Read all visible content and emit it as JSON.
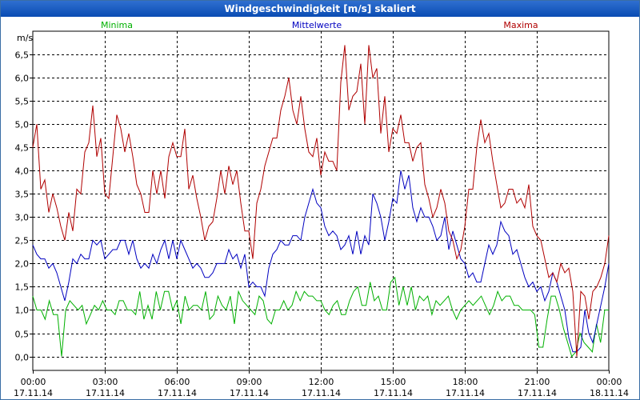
{
  "window": {
    "title": "Windgeschwindigkeit [m/s] skaliert"
  },
  "chart_data": {
    "type": "line",
    "title": "Windgeschwindigkeit [m/s] skaliert",
    "ylabel": "m/s",
    "ylim": [
      -0.3,
      7.0
    ],
    "yticks": [
      "0,0",
      "0,5",
      "1,0",
      "1,5",
      "2,0",
      "2,5",
      "3,0",
      "3,5",
      "4,0",
      "4,5",
      "5,0",
      "5,5",
      "6,0",
      "6,5"
    ],
    "ytick_values": [
      0,
      0.5,
      1,
      1.5,
      2,
      2.5,
      3,
      3.5,
      4,
      4.5,
      5,
      5.5,
      6,
      6.5
    ],
    "xlim_hours": [
      0,
      24
    ],
    "xticks": [
      {
        "time": "00:00",
        "date": "17.11.14",
        "hour": 0
      },
      {
        "time": "03:00",
        "date": "17.11.14",
        "hour": 3
      },
      {
        "time": "06:00",
        "date": "17.11.14",
        "hour": 6
      },
      {
        "time": "09:00",
        "date": "17.11.14",
        "hour": 9
      },
      {
        "time": "12:00",
        "date": "17.11.14",
        "hour": 12
      },
      {
        "time": "15:00",
        "date": "17.11.14",
        "hour": 15
      },
      {
        "time": "18:00",
        "date": "17.11.14",
        "hour": 18
      },
      {
        "time": "21:00",
        "date": "17.11.14",
        "hour": 21
      },
      {
        "time": "00:00",
        "date": "18.11.14",
        "hour": 24
      }
    ],
    "grid": true,
    "series": [
      {
        "name": "Minima",
        "color": "#00b000",
        "legend_position": "left",
        "values": [
          1.3,
          1.0,
          1.0,
          0.8,
          1.2,
          0.9,
          0.9,
          0.0,
          1.0,
          1.2,
          1.1,
          1.0,
          1.1,
          0.7,
          0.9,
          1.1,
          1.0,
          1.2,
          1.0,
          1.0,
          0.9,
          1.2,
          1.2,
          1.0,
          1.0,
          0.9,
          1.4,
          0.8,
          1.1,
          0.8,
          1.4,
          1.0,
          1.4,
          1.4,
          1.0,
          1.2,
          0.7,
          1.3,
          1.0,
          1.1,
          1.1,
          1.0,
          1.4,
          0.8,
          0.9,
          1.3,
          1.1,
          1.0,
          1.3,
          0.7,
          1.4,
          1.2,
          1.1,
          1.0,
          0.9,
          1.3,
          1.2,
          0.8,
          0.7,
          1.0,
          1.0,
          1.2,
          1.0,
          1.1,
          1.4,
          1.2,
          1.4,
          1.3,
          1.3,
          1.2,
          1.2,
          1.0,
          0.9,
          1.1,
          1.2,
          0.9,
          0.9,
          1.2,
          1.4,
          1.5,
          1.1,
          1.1,
          1.6,
          1.2,
          1.3,
          1.0,
          1.0,
          1.6,
          1.7,
          1.1,
          1.5,
          1.1,
          1.5,
          1.0,
          1.3,
          1.2,
          1.3,
          0.9,
          1.2,
          1.1,
          1.2,
          1.3,
          1.0,
          0.8,
          1.0,
          1.1,
          1.2,
          1.1,
          1.2,
          1.3,
          1.1,
          0.9,
          1.1,
          1.4,
          1.2,
          1.3,
          1.3,
          1.1,
          1.1,
          1.0,
          1.0,
          1.0,
          0.9,
          0.2,
          0.2,
          0.8,
          1.3,
          1.3,
          1.0,
          0.6,
          0.3,
          0.0,
          0.1,
          0.5,
          0.3,
          0.2,
          0.1,
          0.7,
          0.3,
          1.0,
          1.0
        ]
      },
      {
        "name": "Mittelwerte",
        "color": "#0000c0",
        "legend_position": "center",
        "values": [
          2.4,
          2.2,
          2.1,
          2.1,
          1.9,
          2.0,
          1.8,
          1.5,
          1.2,
          1.6,
          2.1,
          2.0,
          2.2,
          2.1,
          2.1,
          2.5,
          2.4,
          2.5,
          2.1,
          2.2,
          2.3,
          2.3,
          2.5,
          2.5,
          2.2,
          2.5,
          2.1,
          1.9,
          2.0,
          1.9,
          2.2,
          2.0,
          2.3,
          2.5,
          2.1,
          2.5,
          2.1,
          2.5,
          2.3,
          2.1,
          1.9,
          2.0,
          1.9,
          1.7,
          1.7,
          1.8,
          2.0,
          2.0,
          2.0,
          2.3,
          2.1,
          2.2,
          1.9,
          2.2,
          1.5,
          1.6,
          1.5,
          1.5,
          1.3,
          1.9,
          2.2,
          2.3,
          2.5,
          2.4,
          2.4,
          2.6,
          2.6,
          2.5,
          3.0,
          3.3,
          3.6,
          3.3,
          3.2,
          2.8,
          2.6,
          2.7,
          2.6,
          2.3,
          2.4,
          2.6,
          2.2,
          2.7,
          2.2,
          2.6,
          2.4,
          3.5,
          3.3,
          3.0,
          2.5,
          2.9,
          3.4,
          3.3,
          4.0,
          3.6,
          3.9,
          3.2,
          2.9,
          3.2,
          3.0,
          3.0,
          2.8,
          2.5,
          2.6,
          3.0,
          2.3,
          2.7,
          2.4,
          2.1,
          2.0,
          1.7,
          1.8,
          1.6,
          1.6,
          2.0,
          2.4,
          2.2,
          2.4,
          2.9,
          2.7,
          2.6,
          2.2,
          2.3,
          2.0,
          1.7,
          1.5,
          1.6,
          1.4,
          1.5,
          1.2,
          1.4,
          1.8,
          1.6,
          1.3,
          1.0,
          0.4,
          0.1,
          0.1,
          0.2,
          1.0,
          0.5,
          0.3,
          0.7,
          1.1,
          1.5,
          2.0
        ]
      },
      {
        "name": "Maxima",
        "color": "#b00000",
        "legend_position": "right",
        "values": [
          4.5,
          5.0,
          3.6,
          3.8,
          3.1,
          3.5,
          3.2,
          2.8,
          2.5,
          3.1,
          2.7,
          3.6,
          3.5,
          4.4,
          4.6,
          5.4,
          4.3,
          4.7,
          3.5,
          3.4,
          4.3,
          5.2,
          4.9,
          4.4,
          4.8,
          4.3,
          3.7,
          3.5,
          3.1,
          3.1,
          4.0,
          3.5,
          4.0,
          3.4,
          4.3,
          4.6,
          4.3,
          4.3,
          4.9,
          3.6,
          3.9,
          3.4,
          3.0,
          2.5,
          2.8,
          2.9,
          3.4,
          4.0,
          3.5,
          4.1,
          3.7,
          4.0,
          3.3,
          2.7,
          2.7,
          2.1,
          3.3,
          3.6,
          4.1,
          4.4,
          4.7,
          4.7,
          5.3,
          5.6,
          6.0,
          5.3,
          5.0,
          5.6,
          4.9,
          4.4,
          4.3,
          4.7,
          3.9,
          4.4,
          4.2,
          4.2,
          4.0,
          5.9,
          6.7,
          5.3,
          5.6,
          5.7,
          6.3,
          5.0,
          6.7,
          6.0,
          6.2,
          4.8,
          5.6,
          4.4,
          4.9,
          4.8,
          5.2,
          4.6,
          4.6,
          4.2,
          4.5,
          4.6,
          3.7,
          3.4,
          3.0,
          3.2,
          3.6,
          3.3,
          2.7,
          2.5,
          2.1,
          2.3,
          2.8,
          3.6,
          3.6,
          4.5,
          5.1,
          4.6,
          4.8,
          4.2,
          3.7,
          3.2,
          3.3,
          3.6,
          3.6,
          3.3,
          3.4,
          3.2,
          3.7,
          2.8,
          2.6,
          2.5,
          2.1,
          1.7,
          1.8,
          1.6,
          2.0,
          1.8,
          1.9,
          1.4,
          0.0,
          1.4,
          1.3,
          0.8,
          1.4,
          1.5,
          1.7,
          2.0,
          2.6
        ]
      }
    ]
  }
}
